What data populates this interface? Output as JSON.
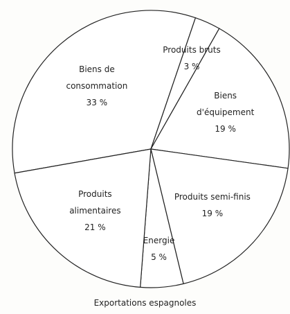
{
  "chart_data": {
    "type": "pie",
    "title": "Exportations espagnoles",
    "categories": [
      "Biens de consommation",
      "Produits bruts",
      "Biens d'équipement",
      "Produits semi-finis",
      "Energie",
      "Produits alimentaires"
    ],
    "values": [
      33,
      3,
      19,
      19,
      5,
      21
    ],
    "value_labels": [
      "33 %",
      "3 %",
      "19 %",
      "19 %",
      "5 %",
      "21 %"
    ],
    "color": "#ffffff"
  }
}
